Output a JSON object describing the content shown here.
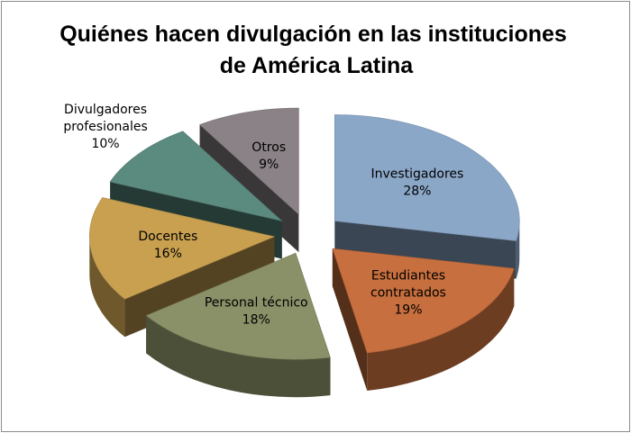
{
  "chart_data": {
    "type": "pie",
    "title_lines": [
      "Quiénes hacen divulgación en las instituciones",
      "de América Latina"
    ],
    "slices": [
      {
        "label_lines": [
          "Investigadores"
        ],
        "value": 28,
        "value_label": "28%",
        "color": "#8BA7C8",
        "text_color": "#000000"
      },
      {
        "label_lines": [
          "Estudiantes",
          "contratados"
        ],
        "value": 19,
        "value_label": "19%",
        "color": "#C76F3E",
        "text_color": "#000000"
      },
      {
        "label_lines": [
          "Personal técnico"
        ],
        "value": 18,
        "value_label": "18%",
        "color": "#8A9168",
        "text_color": "#000000"
      },
      {
        "label_lines": [
          "Docentes"
        ],
        "value": 16,
        "value_label": "16%",
        "color": "#C8A050",
        "text_color": "#000000"
      },
      {
        "label_lines": [
          "Divulgadores",
          "profesionales"
        ],
        "value": 10,
        "value_label": "10%",
        "color": "#5B8B7F",
        "text_color": "#000000"
      },
      {
        "label_lines": [
          "Otros"
        ],
        "value": 9,
        "value_label": "9%",
        "color": "#8A8286",
        "text_color": "#000000"
      }
    ]
  }
}
